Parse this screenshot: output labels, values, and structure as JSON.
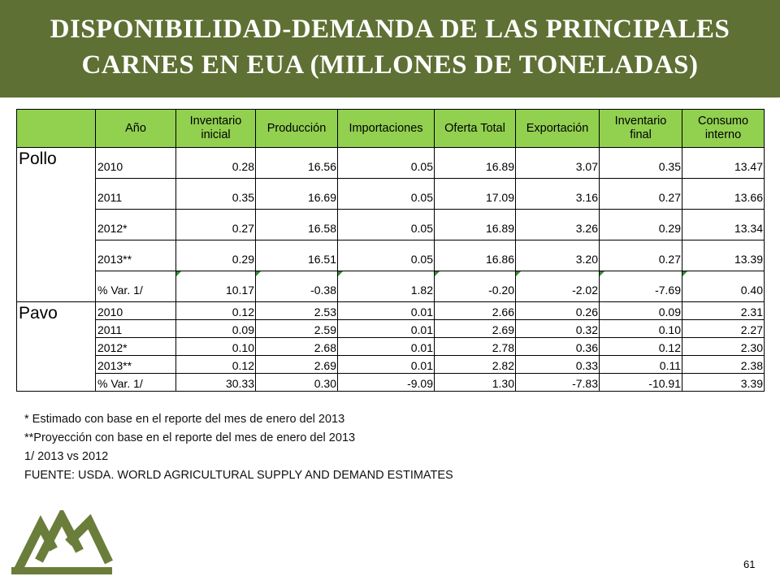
{
  "title": {
    "line1": "DISPONIBILIDAD-DEMANDA DE LAS PRINCIPALES",
    "line2": "CARNES EN EUA (MILLONES DE TONELADAS)"
  },
  "colors": {
    "banner": "#5e7033",
    "header_fill": "#92d050",
    "logo": "#6b7d3a"
  },
  "table": {
    "headers": [
      {
        "line1": "Año",
        "line2": ""
      },
      {
        "line1": "Inventario",
        "line2": "inicial"
      },
      {
        "line1": "Producción",
        "line2": ""
      },
      {
        "line1": "Importaciones",
        "line2": ""
      },
      {
        "line1": "Oferta Total",
        "line2": ""
      },
      {
        "line1": "Exportación",
        "line2": ""
      },
      {
        "line1": "Inventario",
        "line2": "final"
      },
      {
        "line1": "Consumo",
        "line2": "interno"
      }
    ],
    "groups": [
      {
        "name": "Pollo",
        "rows": [
          {
            "year": "2010",
            "values": [
              "0.28",
              "16.56",
              "0.05",
              "16.89",
              "3.07",
              "0.35",
              "13.47"
            ]
          },
          {
            "year": "2011",
            "values": [
              "0.35",
              "16.69",
              "0.05",
              "17.09",
              "3.16",
              "0.27",
              "13.66"
            ]
          },
          {
            "year": "2012*",
            "values": [
              "0.27",
              "16.58",
              "0.05",
              "16.89",
              "3.26",
              "0.29",
              "13.34"
            ]
          },
          {
            "year": "2013**",
            "values": [
              "0.29",
              "16.51",
              "0.05",
              "16.86",
              "3.20",
              "0.27",
              "13.39"
            ]
          },
          {
            "year": "% Var. 1/",
            "values": [
              "10.17",
              "-0.38",
              "1.82",
              "-0.20",
              "-2.02",
              "-7.69",
              "0.40"
            ]
          }
        ]
      },
      {
        "name": "Pavo",
        "rows": [
          {
            "year": "2010",
            "values": [
              "0.12",
              "2.53",
              "0.01",
              "2.66",
              "0.26",
              "0.09",
              "2.31"
            ]
          },
          {
            "year": "2011",
            "values": [
              "0.09",
              "2.59",
              "0.01",
              "2.69",
              "0.32",
              "0.10",
              "2.27"
            ]
          },
          {
            "year": "2012*",
            "values": [
              "0.10",
              "2.68",
              "0.01",
              "2.78",
              "0.36",
              "0.12",
              "2.30"
            ]
          },
          {
            "year": "2013**",
            "values": [
              "0.12",
              "2.69",
              "0.01",
              "2.82",
              "0.33",
              "0.11",
              "2.38"
            ]
          },
          {
            "year": "% Var. 1/",
            "values": [
              "30.33",
              "0.30",
              "-9.09",
              "1.30",
              "-7.83",
              "-10.91",
              "3.39"
            ]
          }
        ]
      }
    ]
  },
  "notes": [
    "* Estimado con base en el reporte del mes de enero del 2013",
    "**Proyección con base en el reporte del mes de enero del 2013",
    "1/ 2013 vs 2012",
    "FUENTE: USDA. WORLD AGRICULTURAL SUPPLY AND DEMAND ESTIMATES"
  ],
  "logo_icon": "mountains-logo-icon",
  "page_number": "61"
}
